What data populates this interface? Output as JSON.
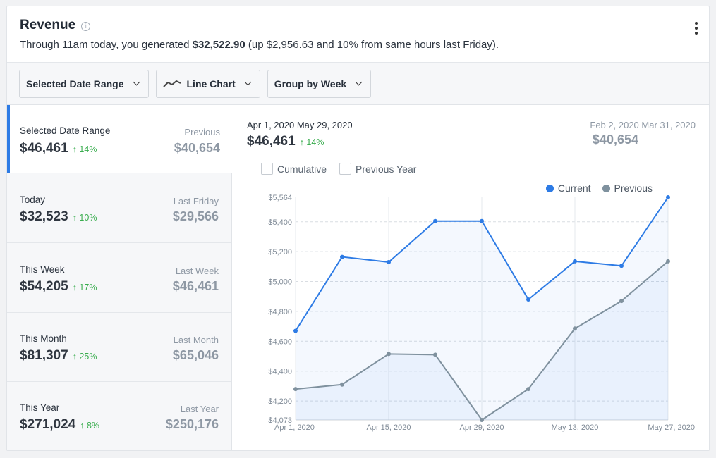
{
  "header": {
    "title": "Revenue",
    "info_glyph": "i",
    "summary_prefix": "Through 11am today, you generated ",
    "summary_amount": "$32,522.90",
    "summary_suffix": " (up $2,956.63 and 10% from same hours last Friday)."
  },
  "toolbar": {
    "date_range_label": "Selected Date Range",
    "chart_type_label": "Line Chart",
    "group_label": "Group by Week"
  },
  "periods": [
    {
      "label": "Selected Date Range",
      "value": "$46,461",
      "change": "↑ 14%",
      "compare_label": "Previous",
      "compare_value": "$40,654",
      "active": true
    },
    {
      "label": "Today",
      "value": "$32,523",
      "change": "↑ 10%",
      "compare_label": "Last Friday",
      "compare_value": "$29,566"
    },
    {
      "label": "This Week",
      "value": "$54,205",
      "change": "↑ 17%",
      "compare_label": "Last Week",
      "compare_value": "$46,461"
    },
    {
      "label": "This Month",
      "value": "$81,307",
      "change": "↑ 25%",
      "compare_label": "Last Month",
      "compare_value": "$65,046"
    },
    {
      "label": "This Year",
      "value": "$271,024",
      "change": "↑ 8%",
      "compare_label": "Last Year",
      "compare_value": "$250,176"
    }
  ],
  "detail": {
    "range": "Apr 1, 2020 May 29, 2020",
    "value": "$46,461",
    "change": "↑ 14%",
    "previous_range": "Feb 2, 2020 Mar 31, 2020",
    "previous_value": "$40,654",
    "cumulative_label": "Cumulative",
    "previous_year_label": "Previous Year"
  },
  "colors": {
    "current": "#2d7be5",
    "previous": "#7f919e",
    "accent": "#2d7be5",
    "positive": "#3aad4f"
  },
  "chart_data": {
    "type": "line",
    "x": [
      "Apr 1, 2020",
      "Apr 8, 2020",
      "Apr 15, 2020",
      "Apr 22, 2020",
      "Apr 29, 2020",
      "May 6, 2020",
      "May 13, 2020",
      "May 20, 2020",
      "May 27, 2020"
    ],
    "x_tick_labels": [
      "Apr 1, 2020",
      "Apr 15, 2020",
      "Apr 29, 2020",
      "May 13, 2020",
      "May 27, 2020"
    ],
    "y_tick_labels": [
      "$4,073",
      "$4,200",
      "$4,400",
      "$4,600",
      "$4,800",
      "$5,000",
      "$5,200",
      "$5,400",
      "$5,564"
    ],
    "y_ticks": [
      4073,
      4200,
      4400,
      4600,
      4800,
      5000,
      5200,
      5400,
      5564
    ],
    "ylim": [
      4073,
      5564
    ],
    "legend_position": "top-right",
    "grid": true,
    "series": [
      {
        "name": "Current",
        "values": [
          4670,
          5165,
          5130,
          5405,
          5405,
          4880,
          5135,
          5105,
          5564
        ]
      },
      {
        "name": "Previous",
        "values": [
          4280,
          4310,
          4515,
          4510,
          4073,
          4280,
          4685,
          4870,
          5135
        ]
      }
    ]
  }
}
